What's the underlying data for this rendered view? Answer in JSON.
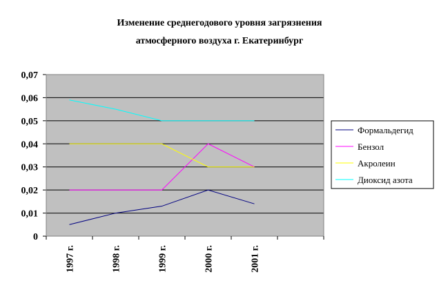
{
  "chart_data": {
    "type": "line",
    "title": [
      "Изменение среднегодового уровня загрязнения",
      "атмосферного воздуха г. Екатеринбург"
    ],
    "categories": [
      "1997 г.",
      "1998 г.",
      "1999 г.",
      "2000 г.",
      "2001 г.",
      null
    ],
    "series": [
      {
        "name": "Формальдегид",
        "color": "#000080",
        "values": [
          0.005,
          0.01,
          0.013,
          0.02,
          0.014,
          null
        ]
      },
      {
        "name": "Бензол",
        "color": "#ff00ff",
        "values": [
          0.02,
          0.02,
          0.02,
          0.04,
          0.03,
          null
        ]
      },
      {
        "name": "Акролеин",
        "color": "#ffff00",
        "values": [
          0.04,
          0.04,
          0.04,
          0.03,
          0.03,
          null
        ]
      },
      {
        "name": "Диоксид азота",
        "color": "#00ffff",
        "values": [
          0.059,
          0.055,
          0.05,
          0.05,
          0.05,
          null
        ]
      }
    ],
    "ylim": [
      0,
      0.07
    ],
    "yticks": [
      0,
      {
        "value": 0.01,
        "label": "0,01"
      },
      {
        "value": 0.02,
        "label": "0,02"
      },
      {
        "value": 0.03,
        "label": "0,03"
      },
      {
        "value": 0.04,
        "label": "0,04"
      },
      {
        "value": 0.05,
        "label": "0,05"
      },
      {
        "value": 0.06,
        "label": "0,06"
      },
      {
        "value": 0.07,
        "label": "0,07"
      }
    ],
    "grid": true,
    "legend": "right",
    "plot_background": "#c0c0c0"
  }
}
